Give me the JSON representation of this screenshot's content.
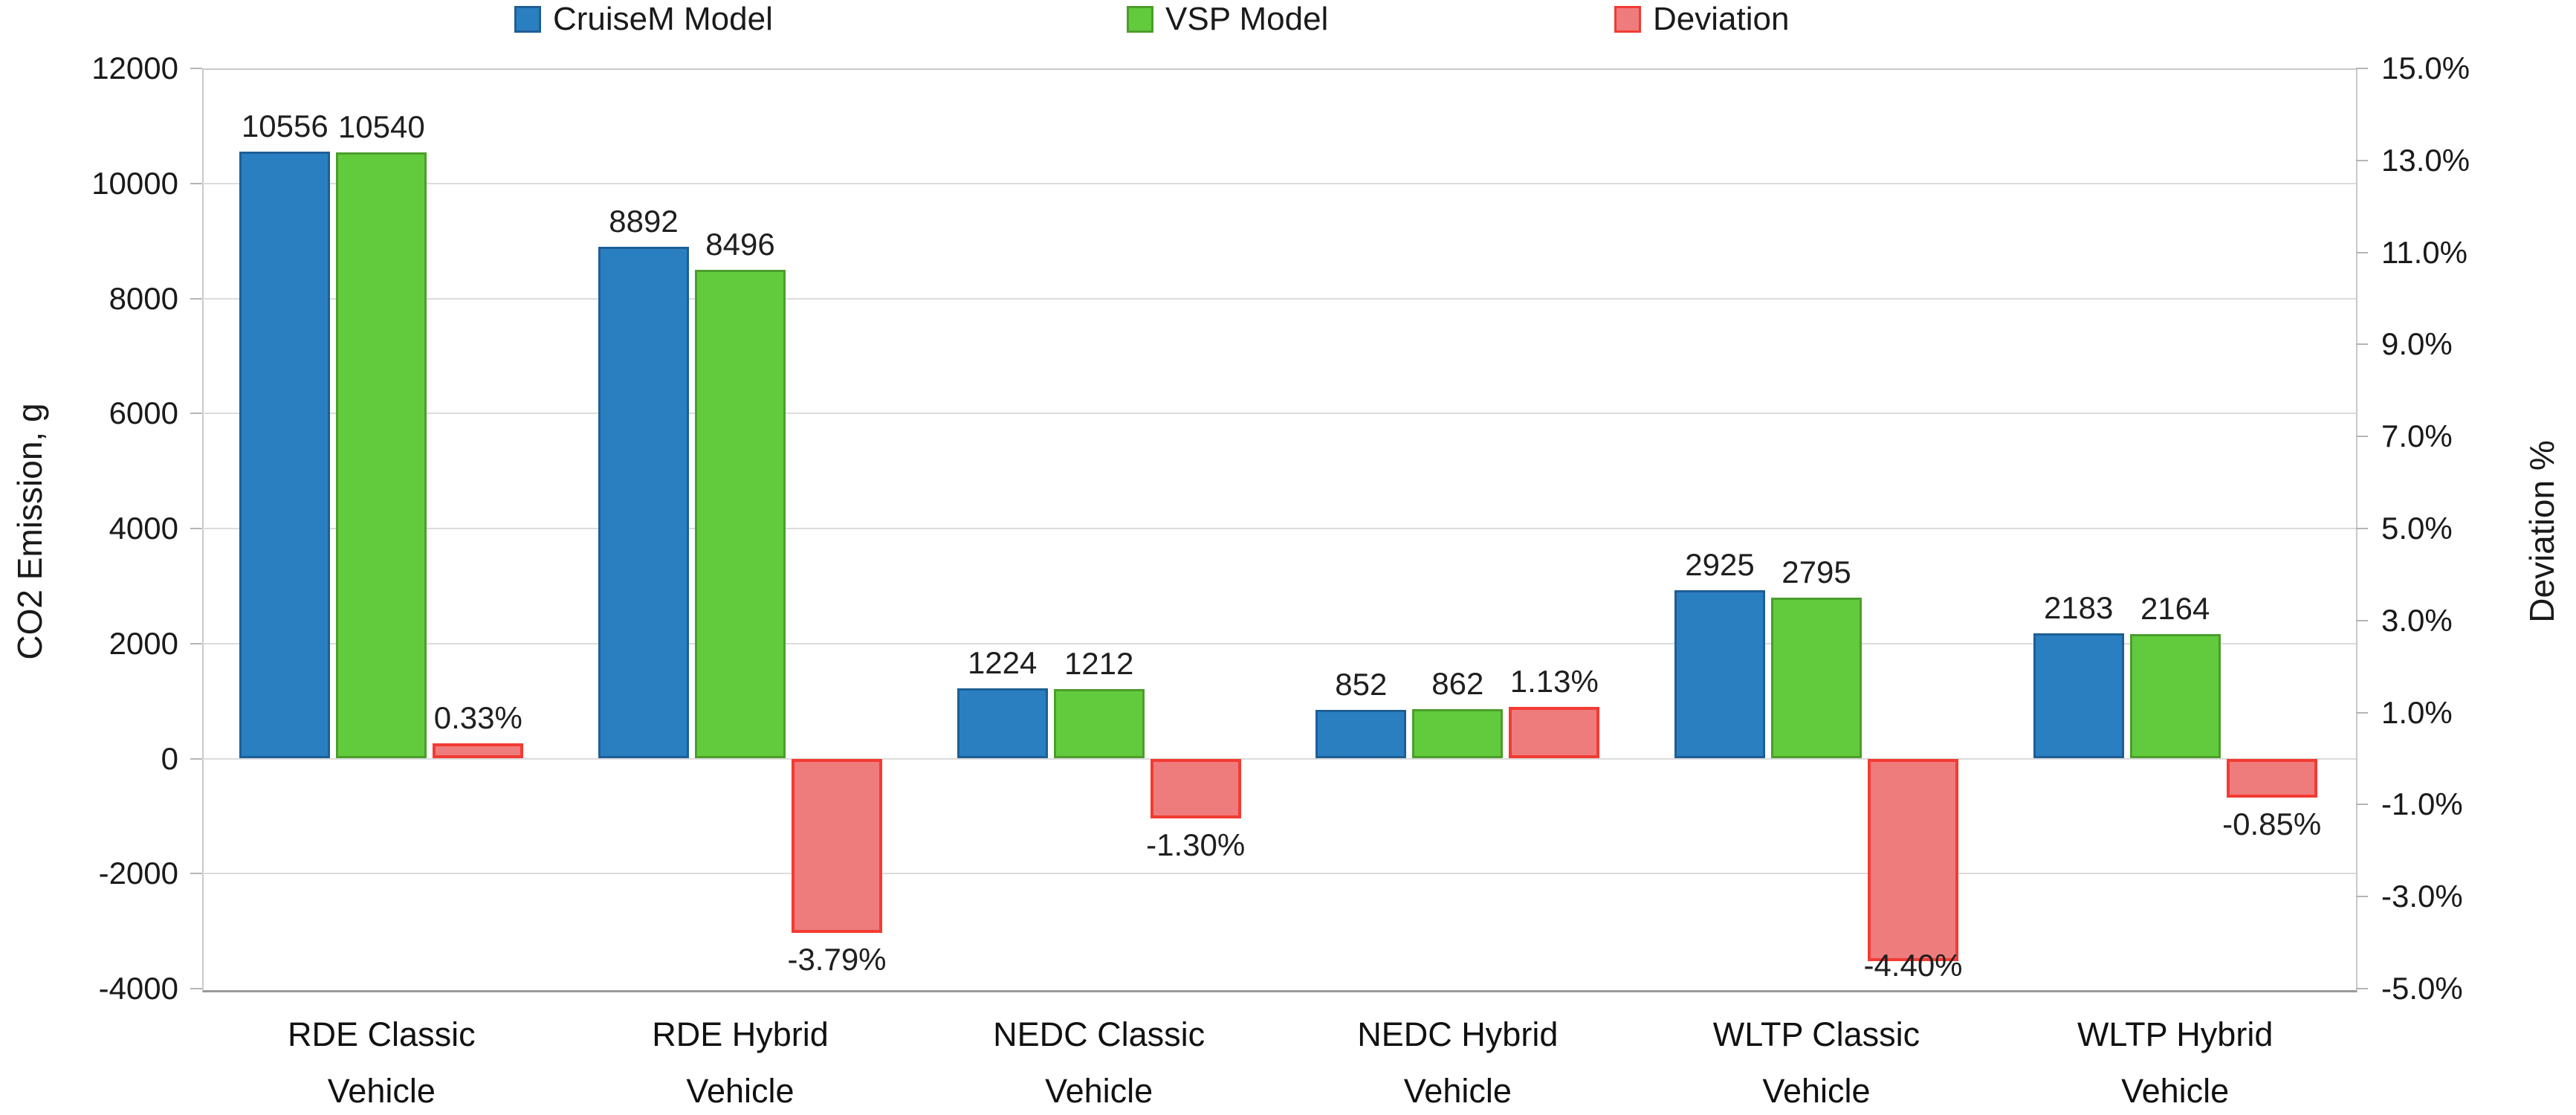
{
  "legend": {
    "items": [
      {
        "label": "CruiseM Model",
        "fill": "#2a7fc1",
        "border": "#1d5f96"
      },
      {
        "label": "VSP Model",
        "fill": "#62cb3d",
        "border": "#4b9e2b"
      },
      {
        "label": "Deviation",
        "fill": "#ee7c7c",
        "border": "#f23b33"
      }
    ]
  },
  "chart_data": {
    "type": "bar",
    "title": "",
    "categories": [
      "RDE Classic Vehicle",
      "RDE Hybrid Vehicle",
      "NEDC Classic Vehicle",
      "NEDC Hybrid Vehicle",
      "WLTP Classic Vehicle",
      "WLTP Hybrid Vehicle"
    ],
    "series": [
      {
        "name": "CruiseM Model",
        "axis": "left",
        "values": [
          10556,
          8892,
          1224,
          852,
          2925,
          2183
        ],
        "labels": [
          "10556",
          "8892",
          "1224",
          "852",
          "2925",
          "2183"
        ],
        "fill": "#2a7fc1",
        "border": "#1d5f96",
        "border_width": 3
      },
      {
        "name": "VSP Model",
        "axis": "left",
        "values": [
          10540,
          8496,
          1212,
          862,
          2795,
          2164
        ],
        "labels": [
          "10540",
          "8496",
          "1212",
          "862",
          "2795",
          "2164"
        ],
        "fill": "#62cb3d",
        "border": "#4b9e2b",
        "border_width": 3
      },
      {
        "name": "Deviation",
        "axis": "right",
        "values": [
          0.33,
          -3.79,
          -1.3,
          1.13,
          -4.4,
          -0.85
        ],
        "labels": [
          "0.33%",
          "-3.79%",
          "-1.30%",
          "1.13%",
          "-4.40%",
          "-0.85%"
        ],
        "fill": "#ee7c7c",
        "border": "#f23b33",
        "border_width": 4
      }
    ],
    "left_axis": {
      "label": "CO2 Emission, g",
      "min": -4000,
      "max": 12000,
      "step": 2000,
      "ticks": [
        "12000",
        "10000",
        "8000",
        "6000",
        "4000",
        "2000",
        "0",
        "-2000",
        "-4000"
      ]
    },
    "right_axis": {
      "label": "Deviation %",
      "min": -5,
      "max": 15,
      "step": 2,
      "ticks": [
        "15.0%",
        "13.0%",
        "11.0%",
        "9.0%",
        "7.0%",
        "5.0%",
        "3.0%",
        "1.0%",
        "-1.0%",
        "-3.0%",
        "-5.0%"
      ]
    },
    "grid": true,
    "legend_position": "top",
    "colors": {
      "gridline": "#dcdcdc",
      "plot_border": "#c9c9c9",
      "axis_line": "#9a9a9a",
      "text": "#1a1a1a"
    }
  }
}
